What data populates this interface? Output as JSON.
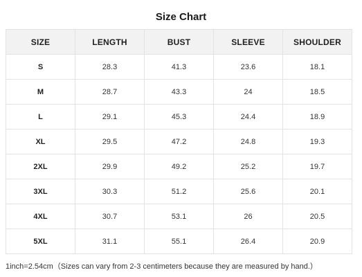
{
  "title": "Size Chart",
  "headers": [
    "SIZE",
    "LENGTH",
    "BUST",
    "SLEEVE",
    "SHOULDER"
  ],
  "rows": [
    [
      "S",
      "28.3",
      "41.3",
      "23.6",
      "18.1"
    ],
    [
      "M",
      "28.7",
      "43.3",
      "24",
      "18.5"
    ],
    [
      "L",
      "29.1",
      "45.3",
      "24.4",
      "18.9"
    ],
    [
      "XL",
      "29.5",
      "47.2",
      "24.8",
      "19.3"
    ],
    [
      "2XL",
      "29.9",
      "49.2",
      "25.2",
      "19.7"
    ],
    [
      "3XL",
      "30.3",
      "51.2",
      "25.6",
      "20.1"
    ],
    [
      "4XL",
      "30.7",
      "53.1",
      "26",
      "20.5"
    ],
    [
      "5XL",
      "31.1",
      "55.1",
      "26.4",
      "20.9"
    ]
  ],
  "note": "1inch=2.54cm（Sizes can vary from 2-3 centimeters because they are measured by hand.）",
  "colors": {
    "header_background": "#f2f2f2",
    "border": "#e3e3e3",
    "text": "#333333"
  }
}
